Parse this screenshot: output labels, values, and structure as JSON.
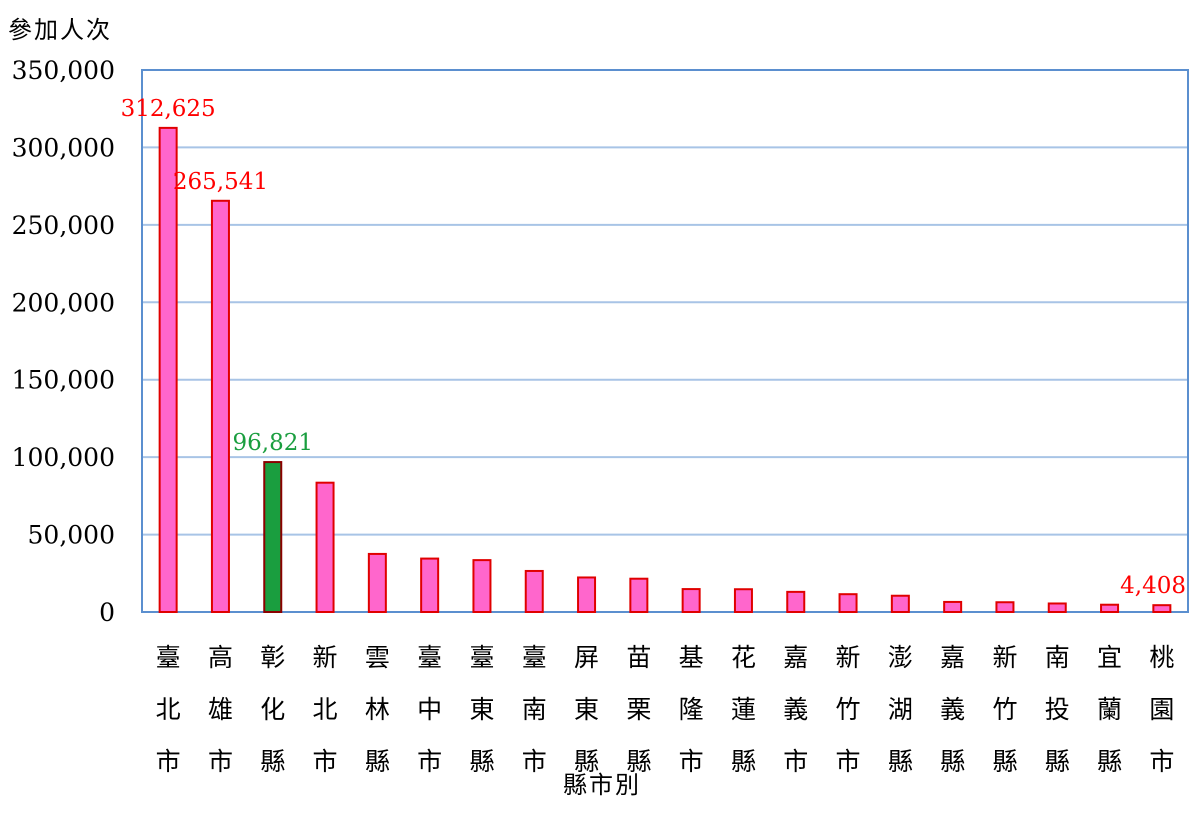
{
  "chart_data": {
    "type": "bar",
    "ylabel": "參加人次",
    "xlabel": "縣市別",
    "ylim": [
      0,
      350000
    ],
    "yticks": [
      "0",
      "50,000",
      "100,000",
      "150,000",
      "200,000",
      "250,000",
      "300,000",
      "350,000"
    ],
    "grid": true,
    "colors": {
      "bar": "#ff66cc",
      "bar_border": "#e00000",
      "highlight": "#1a9e3f",
      "highlight_border": "#8b0000",
      "grid": "#a8c4e6",
      "axis": "#5b8fcf",
      "label_red": "#ff0000",
      "label_green": "#1a9e3f"
    },
    "categories": [
      "臺北市",
      "高雄市",
      "彰化縣",
      "新北市",
      "雲林縣",
      "臺中市",
      "臺東縣",
      "臺南市",
      "屏東縣",
      "苗栗縣",
      "基隆市",
      "花蓮縣",
      "嘉義市",
      "新竹市",
      "澎湖縣",
      "嘉義縣",
      "新竹縣",
      "南投縣",
      "宜蘭縣",
      "桃園市"
    ],
    "values": [
      312625,
      265541,
      96821,
      83500,
      37500,
      34500,
      33500,
      26500,
      22300,
      21500,
      14800,
      14700,
      13000,
      11500,
      10500,
      6500,
      6300,
      5500,
      4700,
      4408
    ],
    "highlight_index": 2,
    "data_labels": [
      {
        "index": 0,
        "text": "312,625",
        "color": "red"
      },
      {
        "index": 1,
        "text": "265,541",
        "color": "red"
      },
      {
        "index": 2,
        "text": "96,821",
        "color": "green"
      },
      {
        "index": 19,
        "text": "4,408",
        "color": "red"
      }
    ]
  }
}
